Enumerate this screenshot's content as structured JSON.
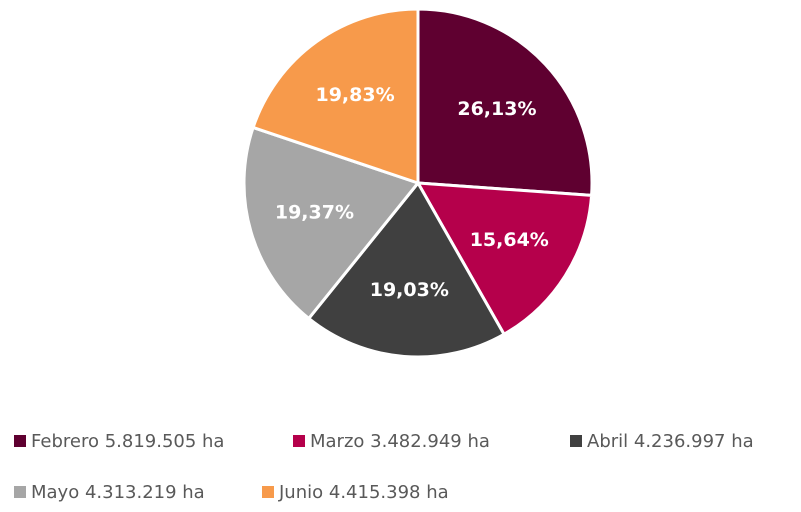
{
  "chart_data": {
    "type": "pie",
    "categories": [
      "Febrero 5.819.505 ha",
      "Marzo 3.482.949 ha",
      "Abril 4.236.997 ha",
      "Mayo 4.313.219 ha",
      "Junio 4.415.398 ha"
    ],
    "values": [
      26.13,
      15.64,
      19.03,
      19.37,
      19.83
    ],
    "value_labels": [
      "26,13%",
      "15,64%",
      "19,03%",
      "19,37%",
      "19,83%"
    ],
    "colors": [
      "#5f0030",
      "#b5004b",
      "#404040",
      "#a6a6a6",
      "#f79a4b"
    ],
    "legend": "bottom"
  }
}
